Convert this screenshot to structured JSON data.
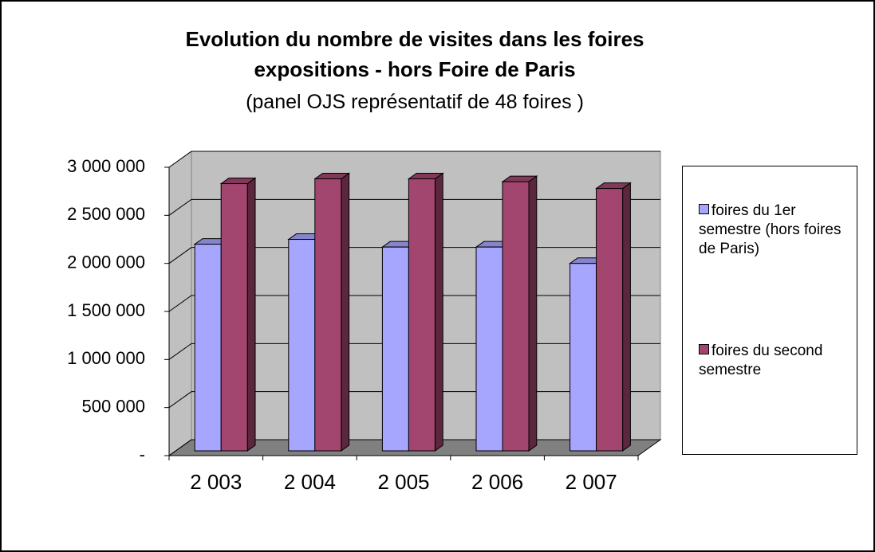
{
  "chart_data": {
    "type": "bar3d",
    "title": "Evolution du nombre de visites dans les foires expositions - hors Foire de Paris",
    "subtitle": "(panel OJS représentatif de 48 foires )",
    "categories": [
      "2 003",
      "2 004",
      "2 005",
      "2 006",
      "2 007"
    ],
    "series": [
      {
        "name": "foires du 1er semestre (hors foires de Paris)",
        "color": "#a6a6ff",
        "values": [
          2150000,
          2200000,
          2120000,
          2120000,
          1950000
        ]
      },
      {
        "name": "foires du second semestre",
        "color": "#a3466f",
        "values": [
          2780000,
          2830000,
          2830000,
          2800000,
          2730000
        ]
      }
    ],
    "ylim": [
      0,
      3000000
    ],
    "yticks": [
      {
        "value": 0,
        "label": "-"
      },
      {
        "value": 500000,
        "label": "500 000"
      },
      {
        "value": 1000000,
        "label": "1 000 000"
      },
      {
        "value": 1500000,
        "label": "1 500 000"
      },
      {
        "value": 2000000,
        "label": "2 000 000"
      },
      {
        "value": 2500000,
        "label": "2 500 000"
      },
      {
        "value": 3000000,
        "label": "3 000 000"
      }
    ],
    "grid": true,
    "legend": "right"
  }
}
